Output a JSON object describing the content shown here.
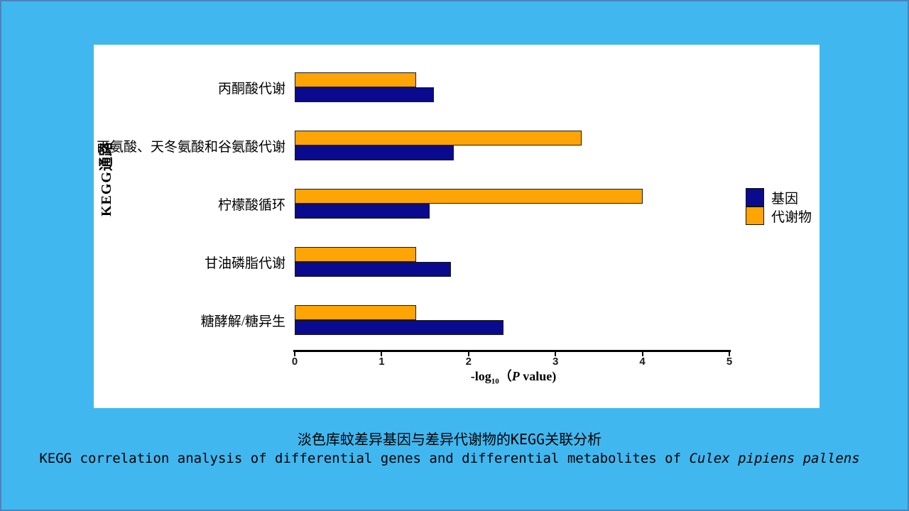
{
  "background": {
    "slide_color": "#41B7EF",
    "border_color": "#4C82BE",
    "panel_color": "#FFFFFF"
  },
  "chart_data": {
    "type": "bar",
    "orientation": "horizontal",
    "categories": [
      "丙酮酸代谢",
      "丙氨酸、天冬氨酸和谷氨酸代谢",
      "柠檬酸循环",
      "甘油磷脂代谢",
      "糖酵解/糖异生"
    ],
    "series": [
      {
        "name": "基因",
        "color": "#0A0A8F",
        "values": [
          1.6,
          1.83,
          1.55,
          1.8,
          2.4
        ]
      },
      {
        "name": "代谢物",
        "color": "#FFA405",
        "values": [
          1.4,
          3.3,
          4.0,
          1.4,
          1.4
        ]
      }
    ],
    "group_top_to_bottom": [
      "代谢物",
      "基因"
    ],
    "bar_outline": "#1A1A1A",
    "xlim": [
      0,
      5
    ],
    "xticks": [
      0,
      1,
      2,
      3,
      4,
      5
    ],
    "xlabel": "-log10（P value)",
    "xlabel_parts": {
      "prefix": "-log",
      "sub": "10",
      "open": "（",
      "italic_p": "P",
      "rest": " value)"
    },
    "ylabel": "KEGG通路",
    "legend_position": "right-middle",
    "grid": false
  },
  "legend": {
    "items": [
      {
        "label": "基因",
        "color": "#0A0A8F"
      },
      {
        "label": "代谢物",
        "color": "#FFA405"
      }
    ]
  },
  "caption": {
    "line1": "淡色库蚊差异基因与差异代谢物的KEGG关联分析",
    "line2_prefix": "KEGG correlation analysis of differential genes and differential metabolites of ",
    "line2_italic": "Culex pipiens pallens"
  }
}
